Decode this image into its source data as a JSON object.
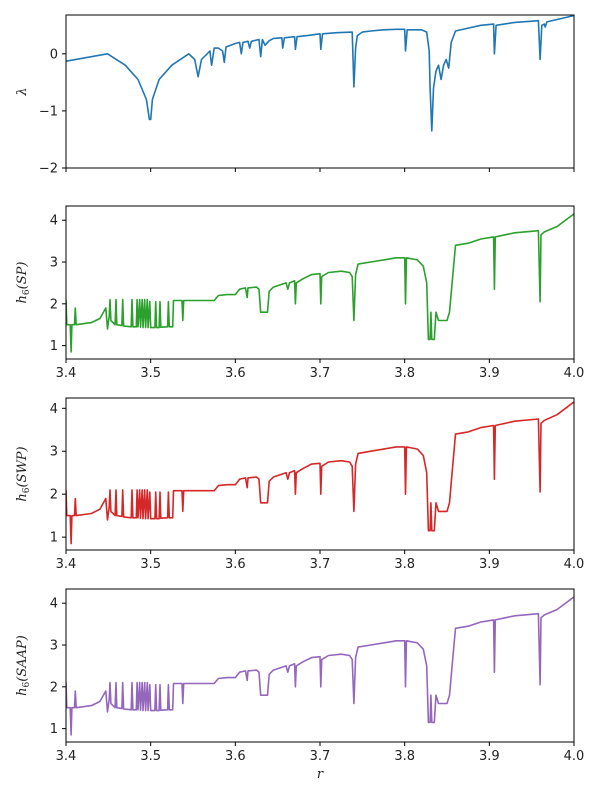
{
  "chart_data": [
    {
      "type": "line",
      "ylabel": "λ",
      "xlabel": "",
      "color": "#1f77b4",
      "xlim": [
        3.4,
        4.0
      ],
      "ylim": [
        -2.0,
        0.68
      ],
      "yticks": [
        -2,
        -1,
        0
      ],
      "ytick_labels": [
        "−2",
        "−1",
        "0"
      ],
      "xticks": [
        3.4,
        3.5,
        3.6,
        3.7,
        3.8,
        3.9,
        4.0
      ],
      "xtick_labels": [],
      "series": [
        {
          "name": "lambda",
          "points": [
            [
              3.4,
              -0.13
            ],
            [
              3.449,
              0.0
            ],
            [
              3.47,
              -0.2
            ],
            [
              3.485,
              -0.45
            ],
            [
              3.495,
              -0.8
            ],
            [
              3.4985,
              -1.15
            ],
            [
              3.5,
              -1.15
            ],
            [
              3.502,
              -0.8
            ],
            [
              3.51,
              -0.45
            ],
            [
              3.525,
              -0.2
            ],
            [
              3.545,
              0.0
            ],
            [
              3.552,
              -0.1
            ],
            [
              3.556,
              -0.4
            ],
            [
              3.56,
              -0.1
            ],
            [
              3.57,
              0.05
            ],
            [
              3.572,
              -0.2
            ],
            [
              3.575,
              0.1
            ],
            [
              3.58,
              0.1
            ],
            [
              3.585,
              0.05
            ],
            [
              3.587,
              -0.15
            ],
            [
              3.589,
              0.12
            ],
            [
              3.6,
              0.18
            ],
            [
              3.605,
              0.2
            ],
            [
              3.607,
              0.0
            ],
            [
              3.609,
              0.2
            ],
            [
              3.615,
              0.22
            ],
            [
              3.617,
              0.1
            ],
            [
              3.619,
              0.22
            ],
            [
              3.628,
              0.25
            ],
            [
              3.63,
              -0.05
            ],
            [
              3.632,
              0.25
            ],
            [
              3.635,
              0.15
            ],
            [
              3.64,
              0.23
            ],
            [
              3.645,
              0.27
            ],
            [
              3.655,
              0.28
            ],
            [
              3.656,
              0.1
            ],
            [
              3.658,
              0.28
            ],
            [
              3.67,
              0.3
            ],
            [
              3.671,
              0.08
            ],
            [
              3.673,
              0.3
            ],
            [
              3.685,
              0.32
            ],
            [
              3.7,
              0.35
            ],
            [
              3.701,
              0.08
            ],
            [
              3.703,
              0.35
            ],
            [
              3.72,
              0.37
            ],
            [
              3.738,
              0.38
            ],
            [
              3.74,
              -0.58
            ],
            [
              3.742,
              0.1
            ],
            [
              3.744,
              0.32
            ],
            [
              3.75,
              0.38
            ],
            [
              3.76,
              0.4
            ],
            [
              3.775,
              0.42
            ],
            [
              3.79,
              0.43
            ],
            [
              3.8,
              0.43
            ],
            [
              3.801,
              0.05
            ],
            [
              3.803,
              0.42
            ],
            [
              3.82,
              0.42
            ],
            [
              3.826,
              0.38
            ],
            [
              3.829,
              0.05
            ],
            [
              3.83,
              -0.6
            ],
            [
              3.832,
              -1.35
            ],
            [
              3.834,
              -0.6
            ],
            [
              3.837,
              -0.3
            ],
            [
              3.84,
              -0.2
            ],
            [
              3.843,
              -0.45
            ],
            [
              3.846,
              -0.2
            ],
            [
              3.849,
              -0.1
            ],
            [
              3.852,
              -0.25
            ],
            [
              3.855,
              0.2
            ],
            [
              3.86,
              0.4
            ],
            [
              3.875,
              0.45
            ],
            [
              3.89,
              0.5
            ],
            [
              3.905,
              0.52
            ],
            [
              3.906,
              0.0
            ],
            [
              3.908,
              0.5
            ],
            [
              3.93,
              0.55
            ],
            [
              3.958,
              0.58
            ],
            [
              3.96,
              -0.1
            ],
            [
              3.962,
              0.5
            ],
            [
              3.965,
              0.52
            ],
            [
              3.966,
              0.47
            ],
            [
              3.968,
              0.56
            ],
            [
              4.0,
              0.67
            ]
          ]
        }
      ]
    },
    {
      "type": "line",
      "ylabel": "h6(SP)",
      "xlabel": "",
      "color": "#2ca02c",
      "xlim": [
        3.4,
        4.0
      ],
      "ylim": [
        0.68,
        4.34
      ],
      "yticks": [
        1,
        2,
        3,
        4
      ],
      "ytick_labels": [
        "1",
        "2",
        "3",
        "4"
      ],
      "xticks": [
        3.4,
        3.5,
        3.6,
        3.7,
        3.8,
        3.9,
        4.0
      ],
      "xtick_labels": [
        "3.4",
        "3.5",
        "3.6",
        "3.7",
        "3.8",
        "3.9",
        "4.0"
      ],
      "series": [
        {
          "name": "SP",
          "points": "shared_h6"
        }
      ]
    },
    {
      "type": "line",
      "ylabel": "h6(SWP)",
      "xlabel": "",
      "color": "#d62728",
      "xlim": [
        3.4,
        4.0
      ],
      "ylim": [
        0.7,
        4.24
      ],
      "yticks": [
        1,
        2,
        3,
        4
      ],
      "ytick_labels": [
        "1",
        "2",
        "3",
        "4"
      ],
      "xticks": [
        3.4,
        3.5,
        3.6,
        3.7,
        3.8,
        3.9,
        4.0
      ],
      "xtick_labels": [
        "3.4",
        "3.5",
        "3.6",
        "3.7",
        "3.8",
        "3.9",
        "4.0"
      ],
      "series": [
        {
          "name": "SWP",
          "points": "shared_h6"
        }
      ]
    },
    {
      "type": "line",
      "ylabel": "h6(SAAP)",
      "xlabel": "r",
      "color": "#9467bd",
      "xlim": [
        3.4,
        4.0
      ],
      "ylim": [
        0.68,
        4.34
      ],
      "yticks": [
        1,
        2,
        3,
        4
      ],
      "ytick_labels": [
        "1",
        "2",
        "3",
        "4"
      ],
      "xticks": [
        3.4,
        3.5,
        3.6,
        3.7,
        3.8,
        3.9,
        4.0
      ],
      "xtick_labels": [
        "3.4",
        "3.5",
        "3.6",
        "3.7",
        "3.8",
        "3.9",
        "4.0"
      ],
      "series": [
        {
          "name": "SAAP",
          "points": "shared_h6"
        }
      ]
    }
  ],
  "shared_h6": [
    [
      3.4,
      2.1
    ],
    [
      3.401,
      1.5
    ],
    [
      3.405,
      1.5
    ],
    [
      3.406,
      0.85
    ],
    [
      3.407,
      1.5
    ],
    [
      3.41,
      1.5
    ],
    [
      3.411,
      1.9
    ],
    [
      3.412,
      1.5
    ],
    [
      3.43,
      1.55
    ],
    [
      3.44,
      1.65
    ],
    [
      3.447,
      1.9
    ],
    [
      3.449,
      1.4
    ],
    [
      3.451,
      1.7
    ],
    [
      3.452,
      2.1
    ],
    [
      3.453,
      1.6
    ],
    [
      3.458,
      1.5
    ],
    [
      3.459,
      2.1
    ],
    [
      3.46,
      1.5
    ],
    [
      3.466,
      1.48
    ],
    [
      3.467,
      2.1
    ],
    [
      3.468,
      1.47
    ],
    [
      3.477,
      1.45
    ],
    [
      3.478,
      2.1
    ],
    [
      3.479,
      1.45
    ],
    [
      3.483,
      1.45
    ],
    [
      3.484,
      2.1
    ],
    [
      3.485,
      1.45
    ],
    [
      3.487,
      2.1
    ],
    [
      3.488,
      1.44
    ],
    [
      3.49,
      2.1
    ],
    [
      3.491,
      1.43
    ],
    [
      3.493,
      2.1
    ],
    [
      3.494,
      1.43
    ],
    [
      3.496,
      2.1
    ],
    [
      3.497,
      1.43
    ],
    [
      3.499,
      2.05
    ],
    [
      3.5,
      1.43
    ],
    [
      3.505,
      1.43
    ],
    [
      3.506,
      2.05
    ],
    [
      3.507,
      1.43
    ],
    [
      3.51,
      1.43
    ],
    [
      3.511,
      2.05
    ],
    [
      3.512,
      1.44
    ],
    [
      3.52,
      1.45
    ],
    [
      3.521,
      2.05
    ],
    [
      3.522,
      1.45
    ],
    [
      3.526,
      1.45
    ],
    [
      3.527,
      2.08
    ],
    [
      3.537,
      2.08
    ],
    [
      3.538,
      1.6
    ],
    [
      3.539,
      2.08
    ],
    [
      3.57,
      2.08
    ],
    [
      3.575,
      2.08
    ],
    [
      3.58,
      2.2
    ],
    [
      3.59,
      2.22
    ],
    [
      3.6,
      2.22
    ],
    [
      3.605,
      2.35
    ],
    [
      3.612,
      2.38
    ],
    [
      3.614,
      2.15
    ],
    [
      3.615,
      2.38
    ],
    [
      3.625,
      2.4
    ],
    [
      3.628,
      2.35
    ],
    [
      3.63,
      1.8
    ],
    [
      3.638,
      1.8
    ],
    [
      3.64,
      2.3
    ],
    [
      3.645,
      2.4
    ],
    [
      3.66,
      2.5
    ],
    [
      3.662,
      2.35
    ],
    [
      3.664,
      2.5
    ],
    [
      3.67,
      2.55
    ],
    [
      3.671,
      2.0
    ],
    [
      3.672,
      2.5
    ],
    [
      3.68,
      2.6
    ],
    [
      3.69,
      2.7
    ],
    [
      3.7,
      2.72
    ],
    [
      3.701,
      2.0
    ],
    [
      3.702,
      2.65
    ],
    [
      3.71,
      2.75
    ],
    [
      3.725,
      2.78
    ],
    [
      3.735,
      2.75
    ],
    [
      3.738,
      2.65
    ],
    [
      3.74,
      1.6
    ],
    [
      3.742,
      2.7
    ],
    [
      3.745,
      2.95
    ],
    [
      3.76,
      3.0
    ],
    [
      3.775,
      3.05
    ],
    [
      3.79,
      3.1
    ],
    [
      3.8,
      3.1
    ],
    [
      3.801,
      2.0
    ],
    [
      3.802,
      3.1
    ],
    [
      3.815,
      3.05
    ],
    [
      3.822,
      2.9
    ],
    [
      3.826,
      2.5
    ],
    [
      3.828,
      1.15
    ],
    [
      3.83,
      1.15
    ],
    [
      3.831,
      1.8
    ],
    [
      3.832,
      1.15
    ],
    [
      3.835,
      1.15
    ],
    [
      3.837,
      1.8
    ],
    [
      3.84,
      1.6
    ],
    [
      3.85,
      1.6
    ],
    [
      3.853,
      1.8
    ],
    [
      3.856,
      2.5
    ],
    [
      3.86,
      3.4
    ],
    [
      3.875,
      3.45
    ],
    [
      3.89,
      3.55
    ],
    [
      3.905,
      3.6
    ],
    [
      3.906,
      2.35
    ],
    [
      3.907,
      3.6
    ],
    [
      3.93,
      3.7
    ],
    [
      3.958,
      3.75
    ],
    [
      3.96,
      2.05
    ],
    [
      3.961,
      3.65
    ],
    [
      3.965,
      3.72
    ],
    [
      3.98,
      3.85
    ],
    [
      4.0,
      4.15
    ]
  ]
}
